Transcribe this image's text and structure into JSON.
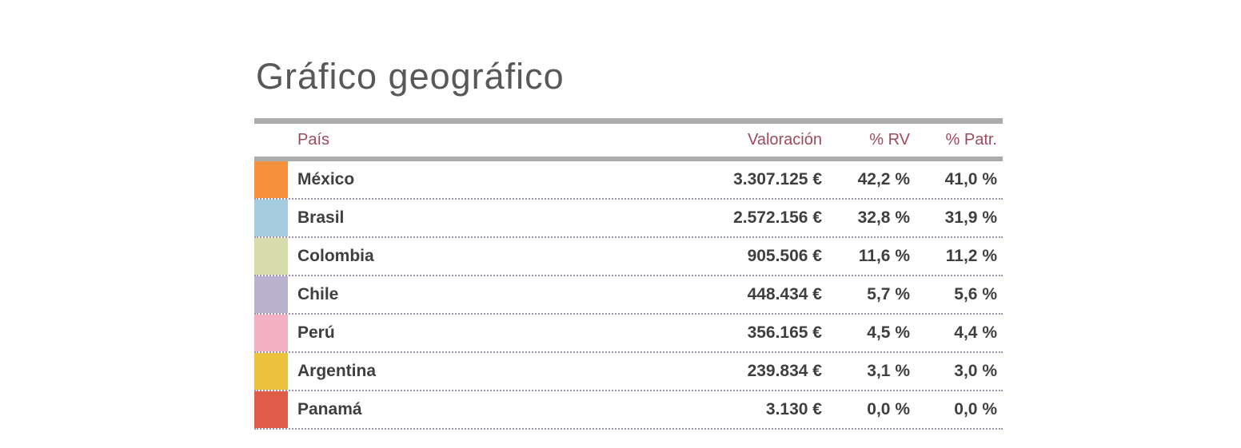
{
  "title": "Gráfico geográfico",
  "table": {
    "headers": {
      "pais": "País",
      "valoracion": "Valoración",
      "rv": "% RV",
      "patr": "% Patr."
    },
    "rows": [
      {
        "country": "México",
        "color": "#f6923e",
        "valoracion": "3.307.125 €",
        "rv": "42,2 %",
        "patr": "41,0 %"
      },
      {
        "country": "Brasil",
        "color": "#a5cbdf",
        "valoracion": "2.572.156 €",
        "rv": "32,8 %",
        "patr": "31,9 %"
      },
      {
        "country": "Colombia",
        "color": "#d6dcab",
        "valoracion": "905.506 €",
        "rv": "11,6 %",
        "patr": "11,2 %"
      },
      {
        "country": "Chile",
        "color": "#b9b2cf",
        "valoracion": "448.434 €",
        "rv": "5,7 %",
        "patr": "5,6 %"
      },
      {
        "country": "Perú",
        "color": "#f3b0c3",
        "valoracion": "356.165 €",
        "rv": "4,5 %",
        "patr": "4,4 %"
      },
      {
        "country": "Argentina",
        "color": "#ecc23c",
        "valoracion": "239.834 €",
        "rv": "3,1 %",
        "patr": "3,0 %"
      },
      {
        "country": "Panamá",
        "color": "#e25c4a",
        "valoracion": "3.130 €",
        "rv": "0,0 %",
        "patr": "0,0 %"
      }
    ]
  },
  "colors": {
    "title_text": "#58585a",
    "header_text": "#9e4a5e",
    "body_text": "#3f3f41",
    "divider_bar": "#acacac",
    "dotted_separator": "#9c90ae"
  },
  "chart_data": {
    "type": "table",
    "title": "Gráfico geográfico",
    "columns": [
      "País",
      "Valoración",
      "% RV",
      "% Patr."
    ],
    "categories": [
      "México",
      "Brasil",
      "Colombia",
      "Chile",
      "Perú",
      "Argentina",
      "Panamá"
    ],
    "series": [
      {
        "name": "Valoración (€)",
        "values": [
          3307125,
          2572156,
          905506,
          448434,
          356165,
          239834,
          3130
        ]
      },
      {
        "name": "% RV",
        "values": [
          42.2,
          32.8,
          11.6,
          5.7,
          4.5,
          3.1,
          0.0
        ]
      },
      {
        "name": "% Patr.",
        "values": [
          41.0,
          31.9,
          11.2,
          5.6,
          4.4,
          3.0,
          0.0
        ]
      }
    ],
    "legend_colors": [
      "#f6923e",
      "#a5cbdf",
      "#d6dcab",
      "#b9b2cf",
      "#f3b0c3",
      "#ecc23c",
      "#e25c4a"
    ],
    "legend_position": "left",
    "grid": false
  }
}
